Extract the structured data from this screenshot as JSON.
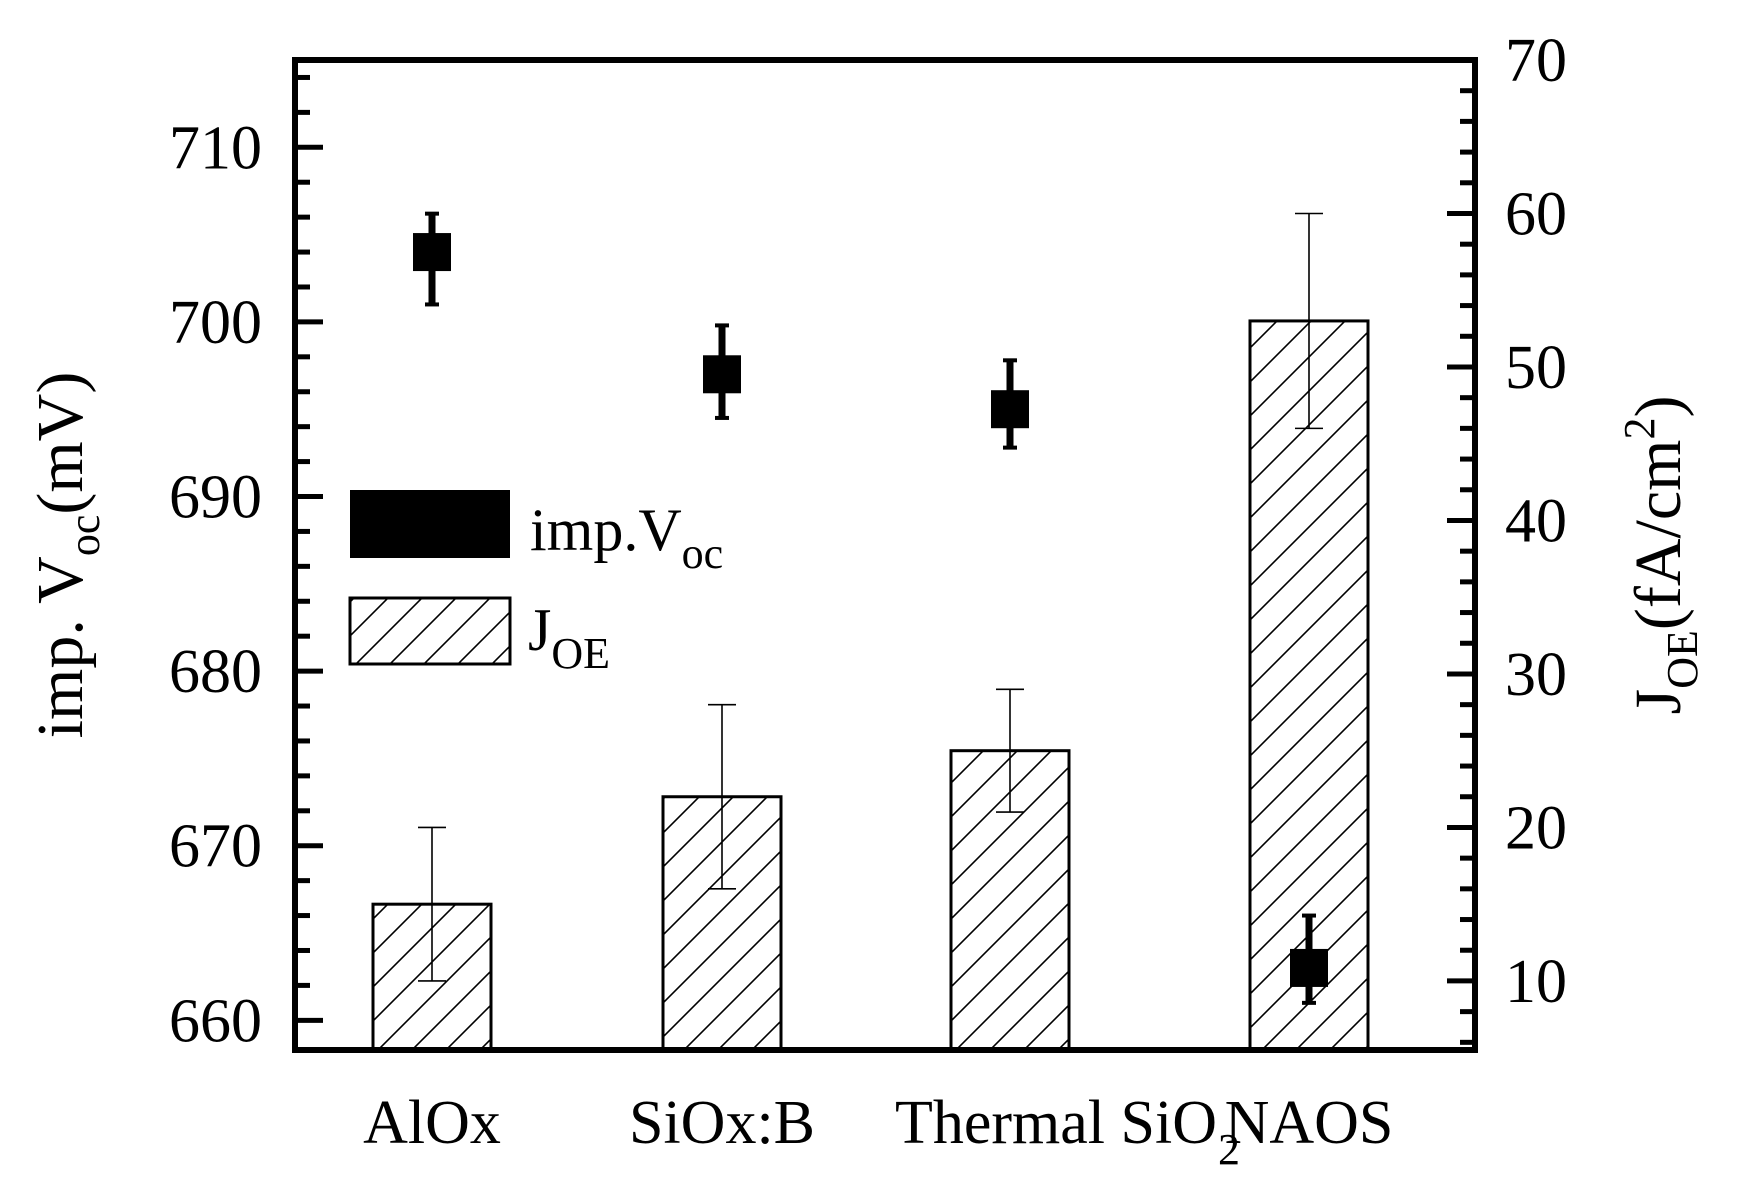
{
  "chart_data": {
    "type": "bar",
    "categories": [
      "AlOx",
      "SiOx:B",
      "Thermal SiO",
      "NAOS"
    ],
    "category_subscripts": [
      "",
      "",
      "2",
      ""
    ],
    "series": [
      {
        "name": "imp.Voc",
        "name_main": "imp.V",
        "name_sub": "oc",
        "kind": "scatter",
        "axis": "left",
        "values": [
          704,
          697,
          695,
          663
        ],
        "error_low": [
          701,
          694.5,
          692.8,
          661
        ],
        "error_high": [
          706.2,
          699.8,
          697.8,
          666
        ]
      },
      {
        "name": "JOE",
        "name_main": "J",
        "name_sub": "OE",
        "kind": "bar",
        "axis": "right",
        "values": [
          15,
          22,
          25,
          53
        ],
        "error_low": [
          10,
          16,
          21,
          46
        ],
        "error_high": [
          20,
          28,
          29,
          60
        ]
      }
    ],
    "left_axis": {
      "label_main": "imp. V",
      "label_sub": "oc",
      "label_tail": "(mV)",
      "ylim": [
        658.3,
        715
      ],
      "ticks": [
        660,
        670,
        680,
        690,
        700,
        710
      ]
    },
    "right_axis": {
      "label_main": "J",
      "label_sub": "OE",
      "label_tail": "(fA/cm",
      "label_sup": "2",
      "label_end": ")",
      "ylim": [
        5.5,
        70
      ],
      "ticks": [
        10,
        20,
        30,
        40,
        50,
        60,
        70
      ]
    },
    "legend_position": "middle-left",
    "grid": false
  }
}
